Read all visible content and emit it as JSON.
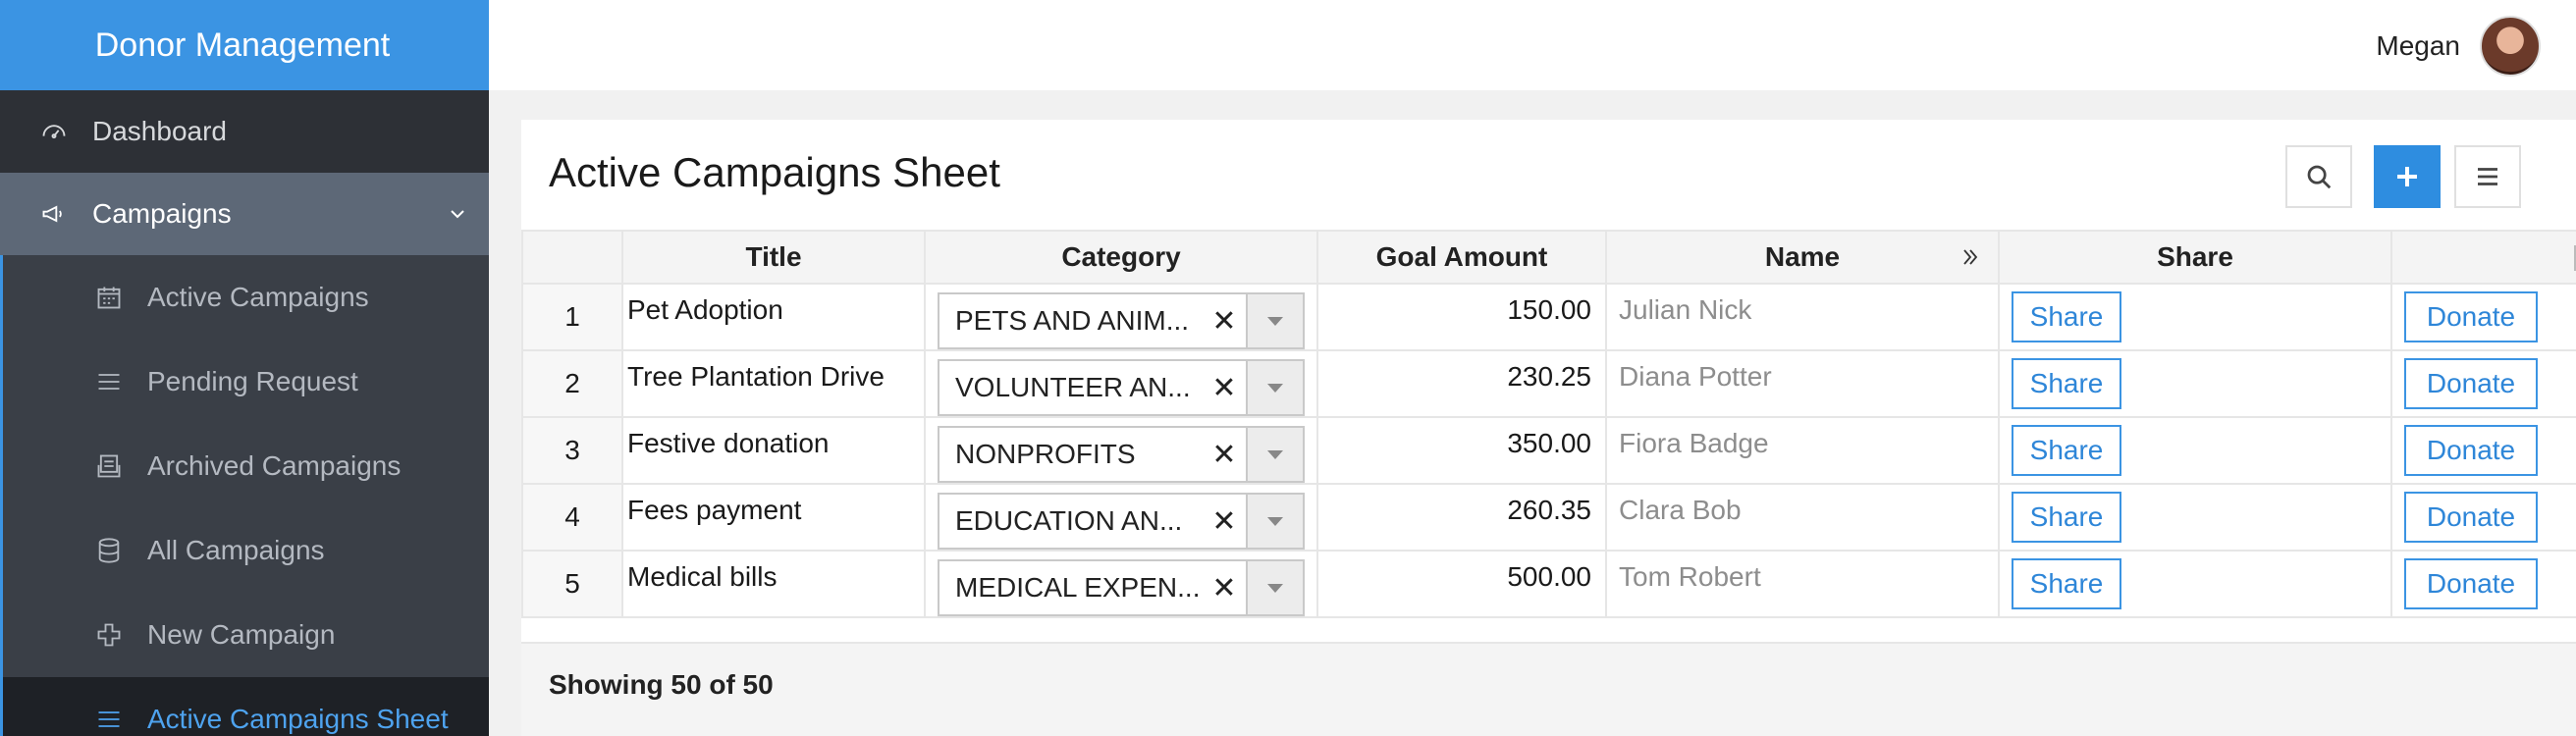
{
  "app": {
    "title": "Donor Management"
  },
  "user": {
    "name": "Megan"
  },
  "sidebar": {
    "items": [
      {
        "label": "Dashboard",
        "icon": "dashboard-icon"
      },
      {
        "label": "Campaigns",
        "icon": "megaphone-icon",
        "expanded": true
      }
    ],
    "subitems": [
      {
        "label": "Active Campaigns",
        "icon": "calendar-icon"
      },
      {
        "label": "Pending Request",
        "icon": "list-icon"
      },
      {
        "label": "Archived Campaigns",
        "icon": "archive-icon"
      },
      {
        "label": "All Campaigns",
        "icon": "database-icon"
      },
      {
        "label": "New Campaign",
        "icon": "plus-outline-icon"
      },
      {
        "label": "Active Campaigns Sheet",
        "icon": "list-icon",
        "active": true
      }
    ]
  },
  "page": {
    "title": "Active Campaigns Sheet",
    "toolbar": [
      "search-icon",
      "add-icon",
      "menu-icon"
    ],
    "accent": "#2e8de0"
  },
  "table": {
    "columns": [
      "Title",
      "Category",
      "Goal Amount",
      "Name",
      "Share"
    ],
    "rows": [
      {
        "index": "1",
        "title": "Pet Adoption",
        "category": "PETS AND ANIM...",
        "goal": "150.00",
        "name": "Julian Nick",
        "share": "Share",
        "donate": "Donate"
      },
      {
        "index": "2",
        "title": "Tree Plantation Drive",
        "category": "VOLUNTEER AN...",
        "goal": "230.25",
        "name": "Diana Potter",
        "share": "Share",
        "donate": "Donate"
      },
      {
        "index": "3",
        "title": "Festive donation",
        "category": "NONPROFITS",
        "goal": "350.00",
        "name": "Fiora Badge",
        "share": "Share",
        "donate": "Donate"
      },
      {
        "index": "4",
        "title": "Fees payment",
        "category": "EDUCATION AN...",
        "goal": "260.35",
        "name": "Clara Bob",
        "share": "Share",
        "donate": "Donate"
      },
      {
        "index": "5",
        "title": "Medical bills",
        "category": "MEDICAL EXPEN...",
        "goal": "500.00",
        "name": "Tom Robert",
        "share": "Share",
        "donate": "Donate"
      }
    ]
  },
  "footer": {
    "status": "Showing 50 of 50"
  }
}
